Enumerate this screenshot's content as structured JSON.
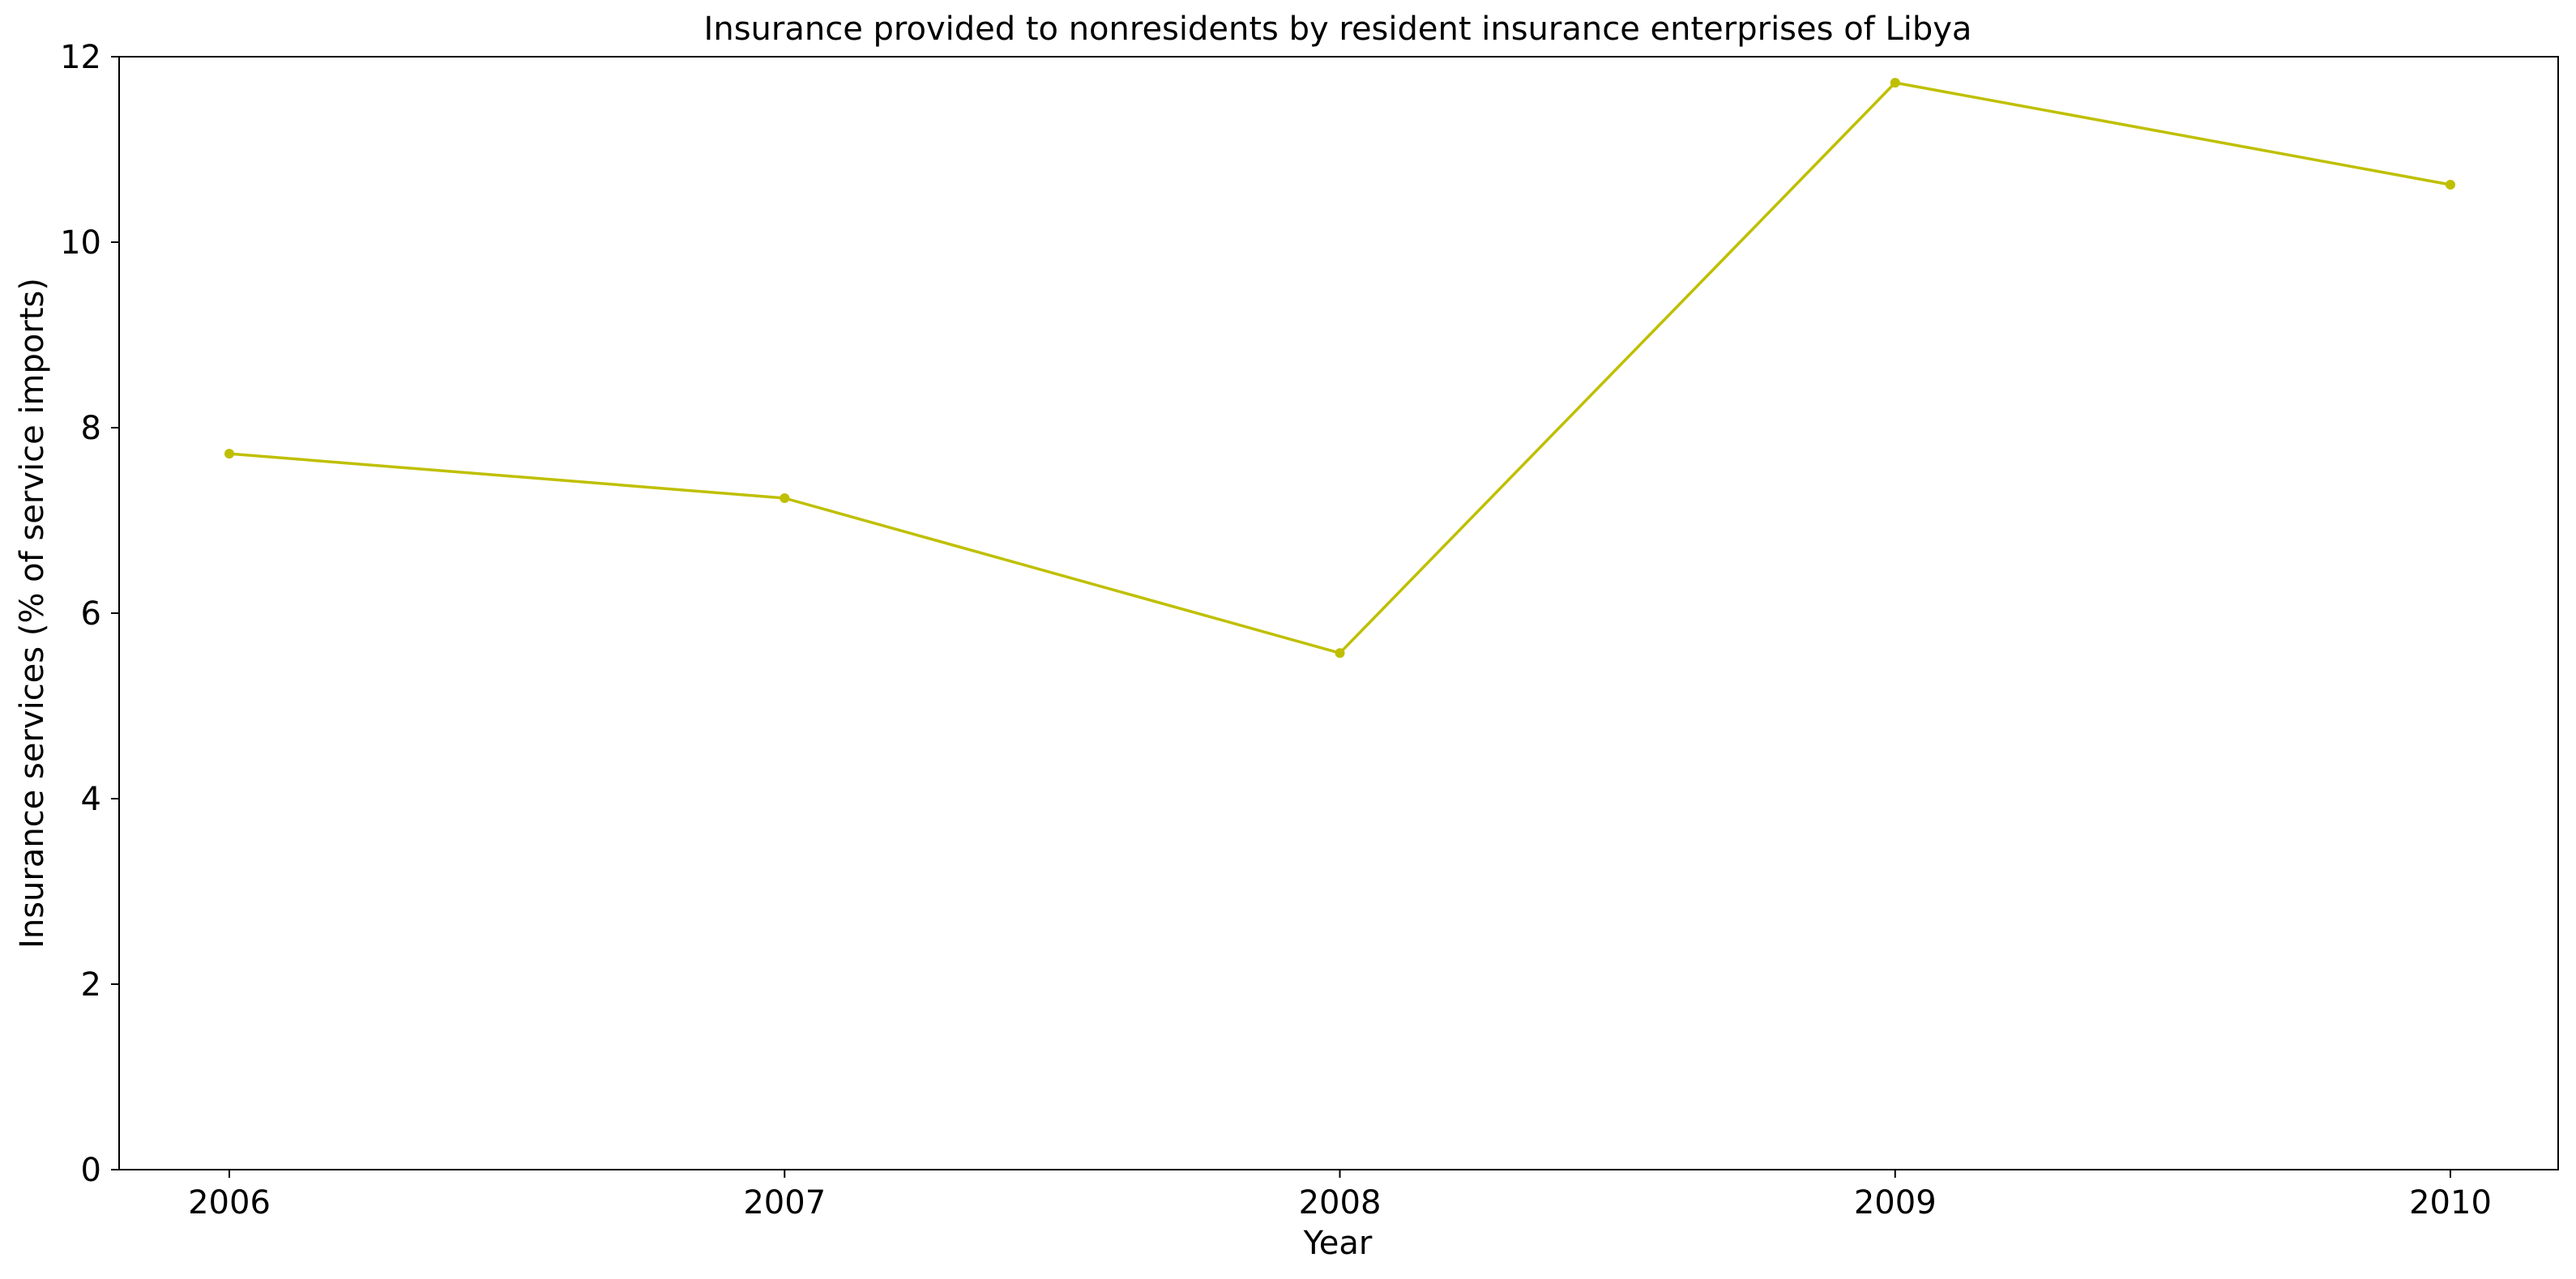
{
  "chart_data": {
    "type": "line",
    "title": "Insurance provided to nonresidents by resident insurance enterprises of Libya",
    "xlabel": "Year",
    "ylabel": "Insurance services (% of service imports)",
    "x": [
      "2006",
      "2007",
      "2008",
      "2009",
      "2010"
    ],
    "series": [
      {
        "values": [
          7.72,
          7.24,
          5.57,
          11.72,
          10.62
        ],
        "color": "#bfbf00"
      }
    ],
    "ylim": [
      0,
      12
    ],
    "yticks": [
      0,
      2,
      4,
      6,
      8,
      10,
      12
    ],
    "grid": false,
    "legend": "none",
    "markers": true
  }
}
